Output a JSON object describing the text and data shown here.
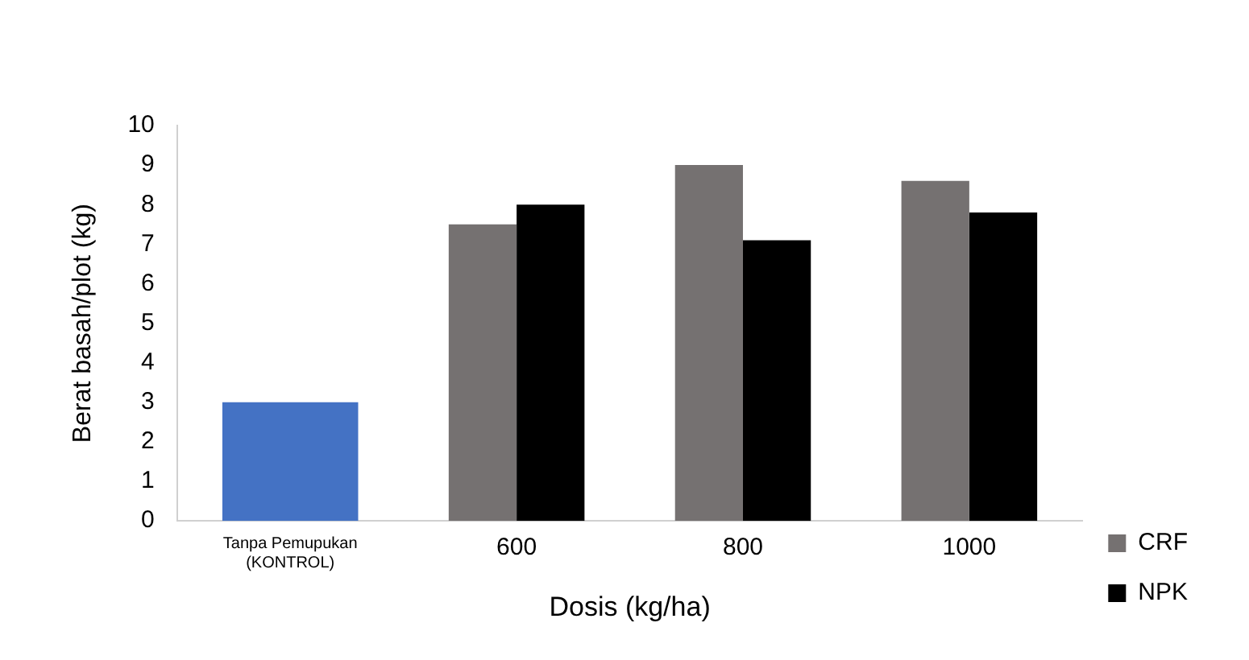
{
  "chart_data": {
    "type": "bar",
    "xlabel": "Dosis (kg/ha)",
    "ylabel": "Berat basah/plot (kg)",
    "categories": [
      "Tanpa Pemupukan\n(KONTROL)",
      "600",
      "800",
      "1000"
    ],
    "series": [
      {
        "color": "#4472c4",
        "values": [
          3.0,
          null,
          null,
          null
        ]
      },
      {
        "name": "CRF",
        "color": "#757171",
        "values": [
          null,
          7.5,
          9.0,
          8.6
        ]
      },
      {
        "name": "NPK",
        "color": "#000000",
        "values": [
          null,
          8.0,
          7.1,
          7.8
        ]
      }
    ],
    "ylim": [
      0,
      10
    ],
    "yticks": [
      0,
      1,
      2,
      3,
      4,
      5,
      6,
      7,
      8,
      9,
      10
    ],
    "grid": false,
    "legend": "right"
  }
}
